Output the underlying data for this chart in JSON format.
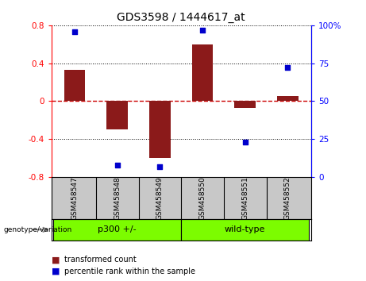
{
  "title": "GDS3598 / 1444617_at",
  "samples": [
    "GSM458547",
    "GSM458548",
    "GSM458549",
    "GSM458550",
    "GSM458551",
    "GSM458552"
  ],
  "bar_values": [
    0.33,
    -0.3,
    -0.6,
    0.6,
    -0.07,
    0.05
  ],
  "percentile_values": [
    96,
    8,
    7,
    97,
    23,
    72
  ],
  "bar_color": "#8B1A1A",
  "dot_color": "#0000CC",
  "ylim_left": [
    -0.8,
    0.8
  ],
  "ylim_right": [
    0,
    100
  ],
  "yticks_left": [
    -0.8,
    -0.4,
    0.0,
    0.4,
    0.8
  ],
  "yticks_right": [
    0,
    25,
    50,
    75,
    100
  ],
  "ytick_labels_right": [
    "0",
    "25",
    "50",
    "75",
    "100%"
  ],
  "ytick_labels_left": [
    "-0.8",
    "-0.4",
    "0",
    "0.4",
    "0.8"
  ],
  "hline_zero_color": "#CC0000",
  "hline_dotted_color": "#000000",
  "groups": [
    {
      "label": "p300 +/-",
      "start": 0,
      "end": 3
    },
    {
      "label": "wild-type",
      "start": 3,
      "end": 6
    }
  ],
  "group_label_prefix": "genotype/variation",
  "legend_bar_label": "transformed count",
  "legend_dot_label": "percentile rank within the sample",
  "bar_width": 0.5,
  "plot_bg_color": "#FFFFFF",
  "label_area_color": "#C8C8C8",
  "group_area_color": "#7CFC00",
  "fig_bg_color": "#FFFFFF"
}
